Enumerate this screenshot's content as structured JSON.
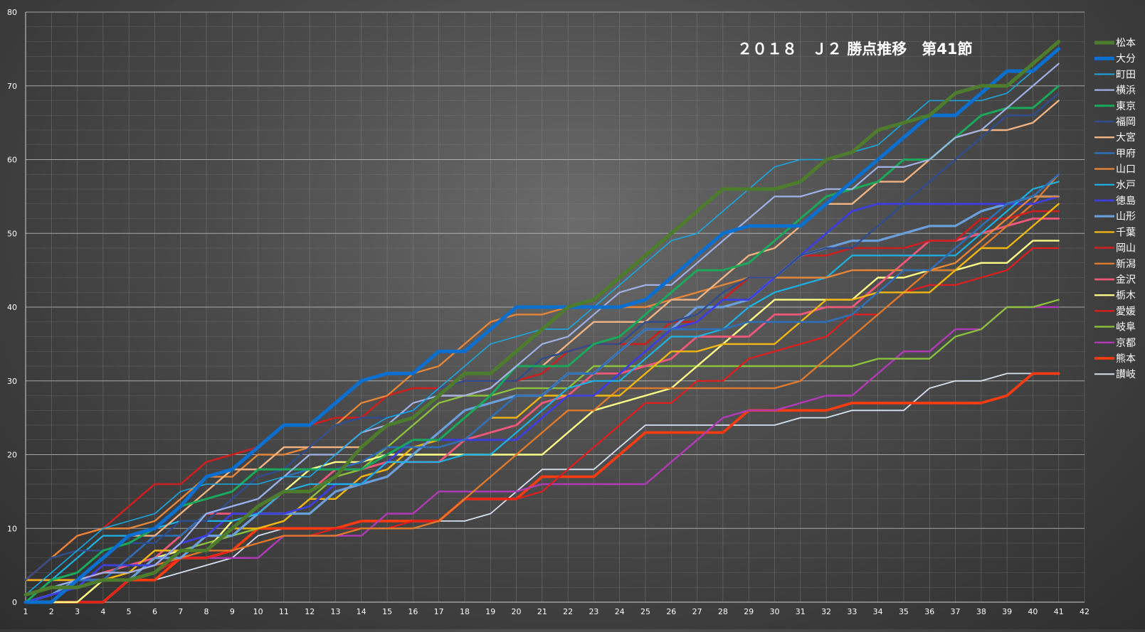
{
  "chart_data": {
    "type": "line",
    "title": "２０１８　Ｊ２ 勝点推移　第41節",
    "xlabel": "",
    "ylabel": "",
    "xlim": [
      1,
      42
    ],
    "ylim": [
      0,
      80
    ],
    "x_ticks": [
      1,
      2,
      3,
      4,
      5,
      6,
      7,
      8,
      9,
      10,
      11,
      12,
      13,
      14,
      15,
      16,
      17,
      18,
      19,
      20,
      21,
      22,
      23,
      24,
      25,
      26,
      27,
      28,
      29,
      30,
      31,
      32,
      33,
      34,
      35,
      36,
      37,
      38,
      39,
      40,
      41,
      42
    ],
    "y_ticks": [
      0,
      10,
      20,
      30,
      40,
      50,
      60,
      70,
      80
    ],
    "grid": true,
    "legend_position": "right",
    "series": [
      {
        "name": "松本",
        "color": "#4e7c2d",
        "width": 5,
        "values": [
          1,
          2,
          2,
          3,
          3,
          4,
          7,
          7,
          10,
          13,
          15,
          15,
          17,
          21,
          24,
          25,
          28,
          31,
          31,
          34,
          37,
          40,
          41,
          44,
          47,
          50,
          53,
          56,
          56,
          56,
          57,
          60,
          61,
          64,
          65,
          66,
          69,
          70,
          70,
          73,
          76
        ]
      },
      {
        "name": "大分",
        "color": "#0b6fcf",
        "width": 5,
        "values": [
          0,
          0,
          3,
          6,
          9,
          10,
          13,
          17,
          18,
          21,
          24,
          24,
          27,
          30,
          31,
          31,
          34,
          34,
          37,
          40,
          40,
          40,
          40,
          40,
          41,
          44,
          47,
          50,
          51,
          51,
          51,
          54,
          57,
          60,
          63,
          66,
          66,
          69,
          72,
          72,
          75
        ]
      },
      {
        "name": "町田",
        "color": "#1aa7e0",
        "width": 1.6,
        "values": [
          1,
          4,
          7,
          10,
          11,
          12,
          15,
          16,
          16,
          16,
          17,
          17,
          20,
          23,
          25,
          26,
          29,
          32,
          35,
          36,
          37,
          37,
          40,
          43,
          46,
          49,
          50,
          53,
          56,
          59,
          60,
          60,
          61,
          62,
          65,
          68,
          68,
          68,
          69,
          72,
          75
        ]
      },
      {
        "name": "横浜",
        "color": "#9fb1e6",
        "width": 2.2,
        "values": [
          1,
          2,
          3,
          4,
          4,
          5,
          8,
          12,
          13,
          14,
          17,
          20,
          20,
          23,
          24,
          27,
          28,
          28,
          29,
          32,
          35,
          36,
          39,
          42,
          43,
          43,
          46,
          49,
          52,
          55,
          55,
          56,
          56,
          59,
          59,
          60,
          63,
          64,
          67,
          70,
          73
        ]
      },
      {
        "name": "東京",
        "color": "#1aa85a",
        "width": 3.0,
        "values": [
          0,
          3,
          4,
          7,
          8,
          10,
          13,
          14,
          15,
          18,
          18,
          18,
          18,
          18,
          20,
          22,
          22,
          25,
          28,
          32,
          32,
          32,
          35,
          36,
          39,
          42,
          45,
          45,
          46,
          49,
          52,
          55,
          56,
          57,
          60,
          60,
          63,
          66,
          67,
          67,
          70
        ]
      },
      {
        "name": "福岡",
        "color": "#2f4d8e",
        "width": 2.4,
        "values": [
          3,
          6,
          7,
          7,
          8,
          8,
          11,
          11,
          14,
          17,
          18,
          21,
          24,
          25,
          25,
          26,
          29,
          30,
          30,
          30,
          33,
          34,
          35,
          35,
          38,
          38,
          39,
          42,
          44,
          44,
          47,
          48,
          48,
          51,
          54,
          57,
          60,
          63,
          66,
          66,
          69
        ]
      },
      {
        "name": "大宮",
        "color": "#f2b482",
        "width": 2.4,
        "values": [
          0,
          0,
          3,
          6,
          9,
          9,
          12,
          15,
          18,
          18,
          21,
          21,
          21,
          21,
          24,
          25,
          28,
          28,
          29,
          32,
          32,
          35,
          38,
          38,
          38,
          41,
          41,
          44,
          47,
          48,
          51,
          54,
          54,
          57,
          57,
          60,
          63,
          64,
          64,
          65,
          68
        ]
      },
      {
        "name": "甲府",
        "color": "#2e6fb8",
        "width": 2.6,
        "values": [
          1,
          2,
          3,
          3,
          6,
          9,
          9,
          12,
          13,
          14,
          17,
          18,
          18,
          19,
          21,
          21,
          21,
          22,
          25,
          28,
          28,
          31,
          31,
          34,
          37,
          37,
          37,
          37,
          38,
          38,
          38,
          38,
          39,
          42,
          45,
          45,
          48,
          51,
          54,
          55,
          58
        ]
      },
      {
        "name": "山口",
        "color": "#e58639",
        "width": 2.4,
        "values": [
          3,
          6,
          9,
          10,
          10,
          11,
          14,
          17,
          17,
          20,
          20,
          21,
          24,
          27,
          28,
          31,
          32,
          35,
          38,
          39,
          39,
          40,
          40,
          40,
          40,
          41,
          42,
          43,
          44,
          44,
          44,
          44,
          45,
          45,
          45,
          45,
          46,
          49,
          52,
          55,
          55
        ]
      },
      {
        "name": "水戸",
        "color": "#1bb2e6",
        "width": 2.2,
        "values": [
          0,
          3,
          6,
          9,
          9,
          10,
          11,
          11,
          11,
          12,
          15,
          16,
          16,
          16,
          19,
          19,
          19,
          20,
          20,
          23,
          26,
          29,
          30,
          30,
          33,
          36,
          36,
          37,
          40,
          42,
          43,
          44,
          47,
          47,
          47,
          47,
          47,
          50,
          53,
          56,
          57
        ]
      },
      {
        "name": "徳島",
        "color": "#3d3ee0",
        "width": 2.8,
        "values": [
          0,
          1,
          2,
          5,
          5,
          5,
          8,
          9,
          12,
          12,
          12,
          13,
          16,
          16,
          19,
          22,
          22,
          22,
          22,
          22,
          25,
          28,
          28,
          31,
          34,
          37,
          38,
          41,
          41,
          44,
          47,
          50,
          53,
          54,
          54,
          54,
          54,
          54,
          54,
          54,
          55
        ]
      },
      {
        "name": "山形",
        "color": "#6b9fdb",
        "width": 3.2,
        "values": [
          0,
          1,
          3,
          3,
          3,
          6,
          6,
          9,
          9,
          12,
          12,
          12,
          15,
          16,
          17,
          20,
          23,
          26,
          27,
          28,
          28,
          31,
          31,
          34,
          37,
          37,
          40,
          40,
          41,
          44,
          47,
          48,
          49,
          49,
          50,
          51,
          51,
          53,
          54,
          55,
          55
        ]
      },
      {
        "name": "千葉",
        "color": "#f2b612",
        "width": 2.4,
        "values": [
          3,
          3,
          3,
          3,
          4,
          7,
          7,
          7,
          10,
          10,
          11,
          14,
          14,
          17,
          18,
          21,
          22,
          22,
          25,
          25,
          28,
          28,
          28,
          28,
          31,
          34,
          34,
          35,
          35,
          35,
          38,
          41,
          41,
          42,
          42,
          42,
          45,
          48,
          48,
          51,
          54
        ]
      },
      {
        "name": "岡山",
        "color": "#cc1f1f",
        "width": 2.6,
        "values": [
          3,
          6,
          9,
          10,
          13,
          16,
          16,
          19,
          20,
          21,
          24,
          24,
          25,
          25,
          28,
          29,
          29,
          30,
          30,
          30,
          31,
          34,
          35,
          35,
          35,
          38,
          38,
          41,
          44,
          44,
          47,
          47,
          48,
          48,
          48,
          49,
          49,
          52,
          52,
          53,
          53
        ]
      },
      {
        "name": "新潟",
        "color": "#e07a2a",
        "width": 2.4,
        "values": [
          0,
          3,
          3,
          3,
          4,
          5,
          6,
          7,
          7,
          8,
          9,
          9,
          9,
          10,
          10,
          10,
          11,
          14,
          17,
          20,
          23,
          26,
          26,
          29,
          29,
          29,
          29,
          29,
          29,
          29,
          30,
          33,
          36,
          39,
          42,
          45,
          45,
          48,
          51,
          54,
          58
        ]
      },
      {
        "name": "金沢",
        "color": "#f0587a",
        "width": 2.8,
        "values": [
          3,
          3,
          3,
          4,
          5,
          6,
          9,
          12,
          12,
          12,
          15,
          15,
          18,
          18,
          19,
          19,
          19,
          22,
          23,
          24,
          27,
          28,
          31,
          31,
          32,
          33,
          36,
          36,
          36,
          39,
          39,
          40,
          40,
          43,
          46,
          49,
          49,
          50,
          51,
          52,
          52
        ]
      },
      {
        "name": "栃木",
        "color": "#ffff88",
        "width": 2.4,
        "values": [
          0,
          0,
          0,
          3,
          3,
          6,
          7,
          7,
          11,
          12,
          15,
          18,
          19,
          19,
          20,
          20,
          20,
          20,
          20,
          20,
          20,
          23,
          26,
          27,
          28,
          29,
          32,
          35,
          38,
          41,
          41,
          41,
          41,
          44,
          44,
          45,
          45,
          46,
          46,
          49,
          49
        ]
      },
      {
        "name": "愛媛",
        "color": "#e31c1c",
        "width": 2.2,
        "values": [
          0,
          0,
          0,
          0,
          3,
          4,
          6,
          6,
          7,
          8,
          9,
          9,
          10,
          10,
          10,
          11,
          11,
          14,
          14,
          14,
          15,
          18,
          21,
          24,
          27,
          27,
          30,
          30,
          33,
          34,
          35,
          36,
          39,
          39,
          42,
          43,
          43,
          44,
          45,
          48,
          48
        ]
      },
      {
        "name": "岐阜",
        "color": "#8ac23c",
        "width": 2.4,
        "values": [
          0,
          0,
          0,
          3,
          4,
          7,
          7,
          8,
          9,
          10,
          11,
          14,
          17,
          18,
          21,
          24,
          27,
          28,
          28,
          29,
          29,
          29,
          32,
          32,
          32,
          32,
          32,
          32,
          32,
          32,
          32,
          32,
          32,
          33,
          33,
          33,
          36,
          37,
          40,
          40,
          41
        ]
      },
      {
        "name": "京都",
        "color": "#b23ab8",
        "width": 2.4,
        "values": [
          0,
          1,
          2,
          5,
          5,
          5,
          6,
          6,
          6,
          6,
          9,
          9,
          9,
          9,
          12,
          12,
          15,
          15,
          15,
          15,
          16,
          16,
          16,
          16,
          16,
          19,
          22,
          25,
          26,
          26,
          27,
          28,
          28,
          31,
          34,
          34,
          37,
          37,
          40,
          40,
          40
        ]
      },
      {
        "name": "熊本",
        "color": "#ff3b0f",
        "width": 3.6,
        "values": [
          0,
          0,
          0,
          0,
          3,
          3,
          6,
          6,
          7,
          10,
          10,
          10,
          10,
          11,
          11,
          11,
          11,
          14,
          14,
          14,
          17,
          17,
          17,
          20,
          23,
          23,
          23,
          23,
          26,
          26,
          26,
          26,
          27,
          27,
          27,
          27,
          27,
          27,
          28,
          31,
          31
        ]
      },
      {
        "name": "讃岐",
        "color": "#d6e2f2",
        "width": 1.8,
        "values": [
          0,
          0,
          0,
          0,
          3,
          3,
          4,
          5,
          6,
          9,
          10,
          10,
          10,
          10,
          10,
          10,
          11,
          11,
          12,
          15,
          18,
          18,
          18,
          21,
          24,
          24,
          24,
          24,
          24,
          24,
          25,
          25,
          26,
          26,
          26,
          29,
          30,
          30,
          31,
          31,
          31
        ]
      }
    ]
  }
}
